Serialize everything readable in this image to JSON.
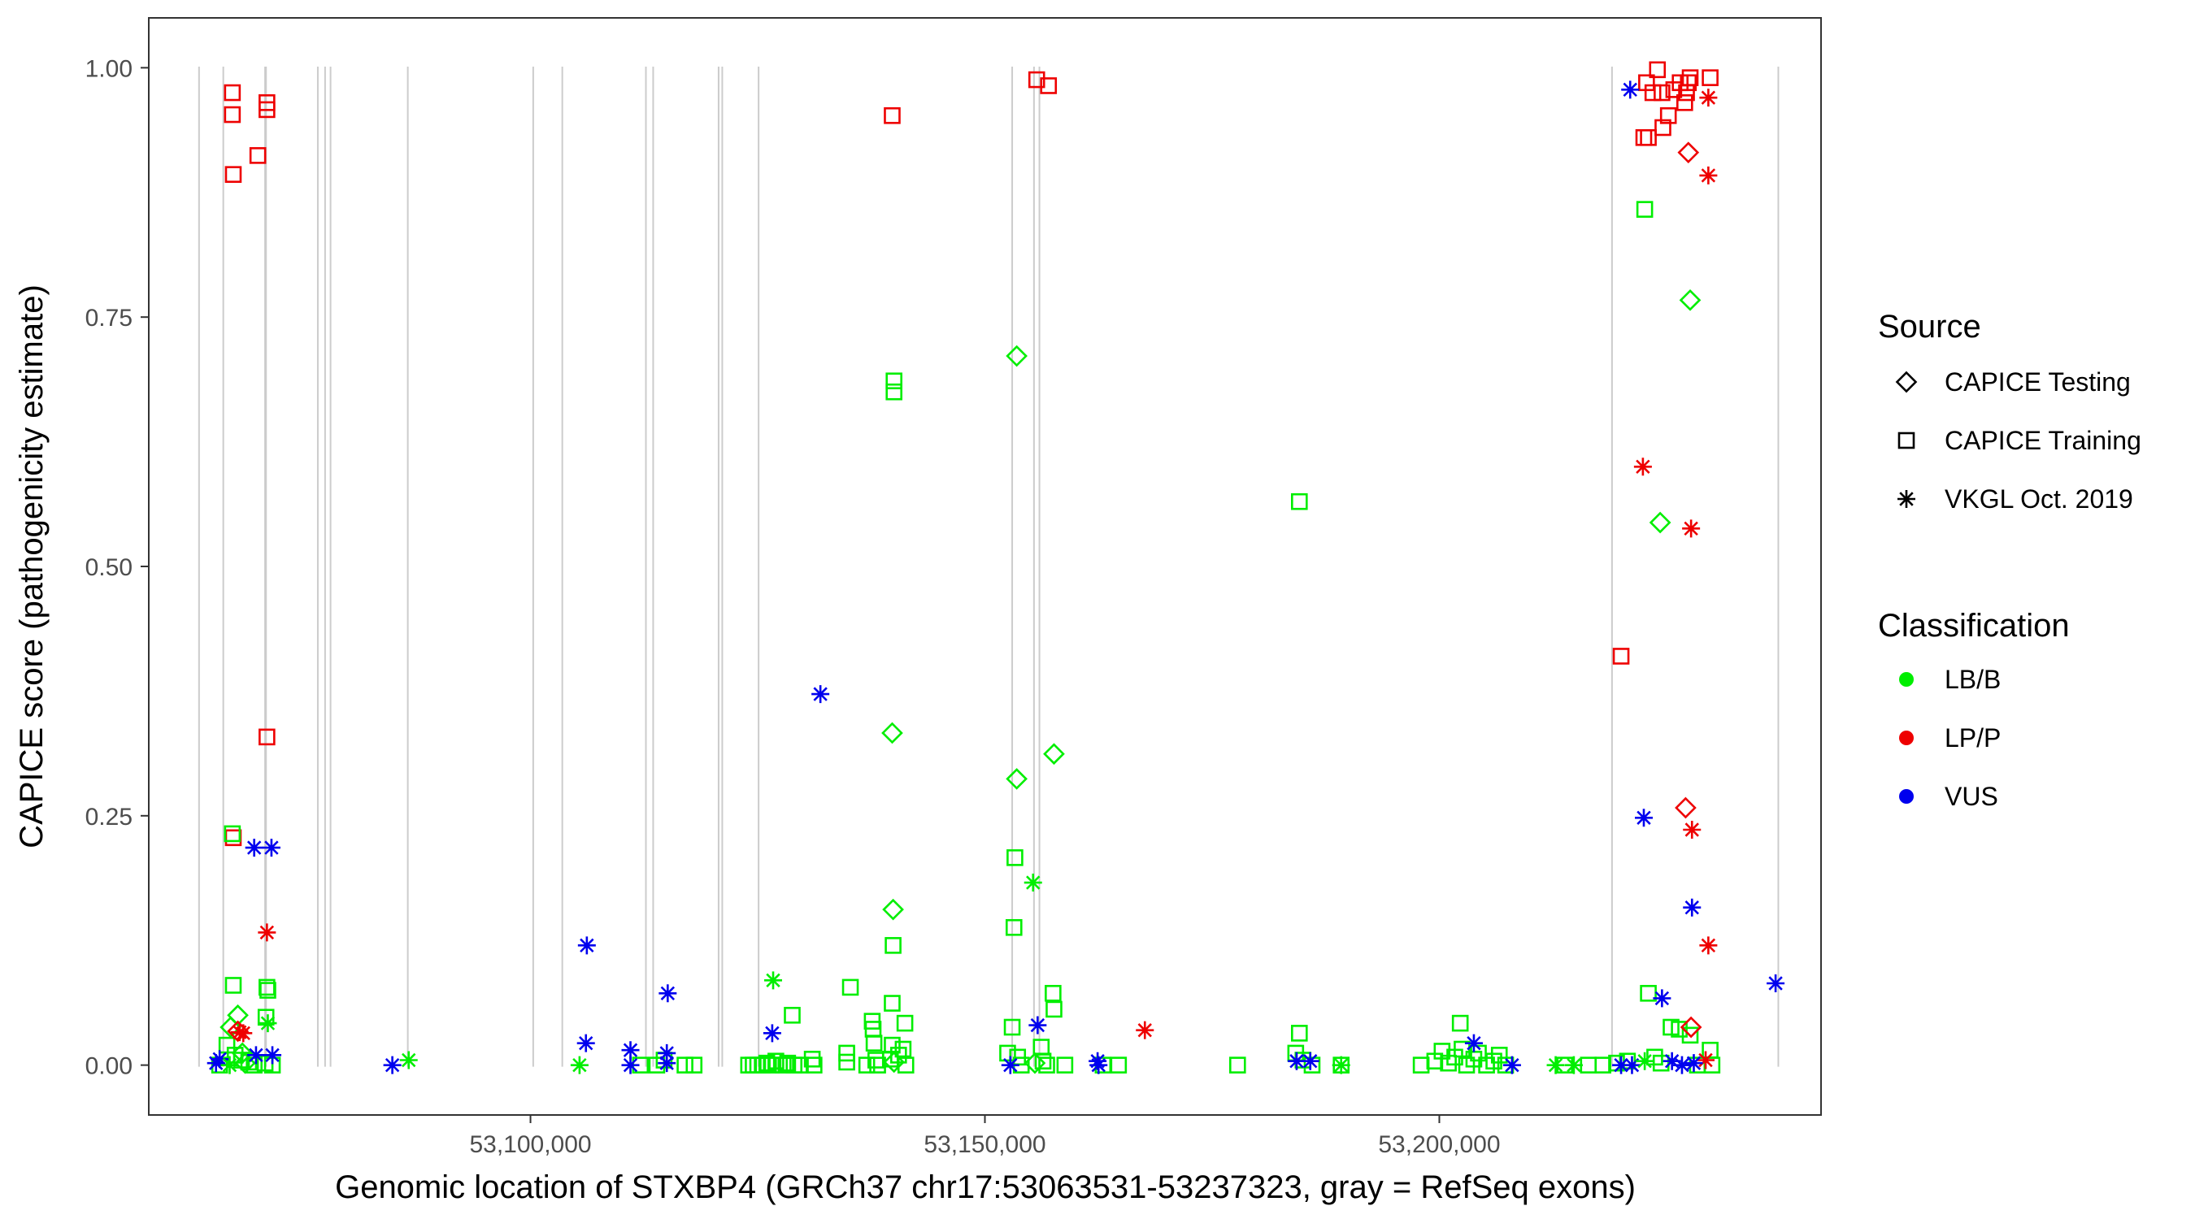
{
  "chart_data": {
    "type": "scatter",
    "xlabel": "Genomic location of STXBP4 (GRCh37 chr17:53063531-53237323, gray = RefSeq exons)",
    "ylabel": "CAPICE score (pathogenicity estimate)",
    "xlim": [
      53058000,
      53242000
    ],
    "ylim": [
      -0.05,
      1.05
    ],
    "x_ticks": [
      53100000,
      53150000,
      53200000
    ],
    "x_tick_labels": [
      "53,100,000",
      "53,150,000",
      "53,200,000"
    ],
    "y_ticks": [
      0.0,
      0.25,
      0.5,
      0.75,
      1.0
    ],
    "y_tick_labels": [
      "0.00",
      "0.25",
      "0.50",
      "0.75",
      "1.00"
    ],
    "grid": false,
    "exons": [
      53063531,
      53066200,
      53070800,
      53070900,
      53076600,
      53077400,
      53078000,
      53086500,
      53100300,
      53103500,
      53112700,
      53113500,
      53120700,
      53121100,
      53125100,
      53153000,
      53155400,
      53156000,
      53219000,
      53237300
    ],
    "legend": {
      "placement": "right",
      "source_title": "Source",
      "source_items": [
        {
          "label": "CAPICE Testing",
          "shape": "diamond"
        },
        {
          "label": "CAPICE Training",
          "shape": "square"
        },
        {
          "label": "VKGL Oct. 2019",
          "shape": "asterisk"
        }
      ],
      "class_title": "Classification",
      "class_items": [
        {
          "label": "LB/B",
          "color": "#00ee00"
        },
        {
          "label": "LP/P",
          "color": "#ee0000"
        },
        {
          "label": "VUS",
          "color": "#0000ee"
        }
      ]
    },
    "series": [
      {
        "name": "CAPICE Training",
        "shape": "square",
        "points": [
          [
            53067200,
            0.975,
            "LP/P"
          ],
          [
            53067200,
            0.953,
            "LP/P"
          ],
          [
            53067300,
            0.893,
            "LP/P"
          ],
          [
            53070000,
            0.912,
            "LP/P"
          ],
          [
            53071000,
            0.965,
            "LP/P"
          ],
          [
            53071000,
            0.958,
            "LP/P"
          ],
          [
            53071000,
            0.329,
            "LP/P"
          ],
          [
            53067300,
            0.228,
            "LP/P"
          ],
          [
            53139800,
            0.952,
            "LP/P"
          ],
          [
            53155700,
            0.988,
            "LP/P"
          ],
          [
            53157000,
            0.982,
            "LP/P"
          ],
          [
            53220000,
            0.41,
            "LP/P"
          ],
          [
            53222500,
            0.93,
            "LP/P"
          ],
          [
            53223000,
            0.93,
            "LP/P"
          ],
          [
            53222800,
            0.985,
            "LP/P"
          ],
          [
            53223500,
            0.975,
            "LP/P"
          ],
          [
            53224000,
            0.998,
            "LP/P"
          ],
          [
            53224500,
            0.975,
            "LP/P"
          ],
          [
            53224600,
            0.94,
            "LP/P"
          ],
          [
            53225200,
            0.952,
            "LP/P"
          ],
          [
            53225800,
            0.978,
            "LP/P"
          ],
          [
            53226500,
            0.985,
            "LP/P"
          ],
          [
            53227000,
            0.965,
            "LP/P"
          ],
          [
            53227200,
            0.975,
            "LP/P"
          ],
          [
            53227400,
            0.985,
            "LP/P"
          ],
          [
            53227600,
            0.99,
            "LP/P"
          ],
          [
            53229800,
            0.99,
            "LP/P"
          ],
          [
            53067200,
            0.232,
            "LB/B"
          ],
          [
            53067300,
            0.08,
            "LB/B"
          ],
          [
            53071000,
            0.078,
            "LB/B"
          ],
          [
            53071100,
            0.075,
            "LB/B"
          ],
          [
            53070900,
            0.048,
            "LB/B"
          ],
          [
            53066600,
            0.02,
            "LB/B"
          ],
          [
            53067500,
            0.01,
            "LB/B"
          ],
          [
            53068200,
            0.005,
            "LB/B"
          ],
          [
            53069000,
            0.003,
            "LB/B"
          ],
          [
            53065800,
            0.0,
            "LB/B"
          ],
          [
            53069600,
            0.0,
            "LB/B"
          ],
          [
            53070800,
            0.002,
            "LB/B"
          ],
          [
            53071600,
            0.0,
            "LB/B"
          ],
          [
            53112100,
            0.0,
            "LB/B"
          ],
          [
            53113900,
            0.0,
            "LB/B"
          ],
          [
            53114700,
            0.005,
            "LB/B"
          ],
          [
            53117000,
            0.0,
            "LB/B"
          ],
          [
            53118000,
            0.0,
            "LB/B"
          ],
          [
            53124000,
            0.0,
            "LB/B"
          ],
          [
            53124500,
            0.0,
            "LB/B"
          ],
          [
            53125000,
            0.0,
            "LB/B"
          ],
          [
            53125500,
            0.0,
            "LB/B"
          ],
          [
            53126000,
            0.002,
            "LB/B"
          ],
          [
            53126500,
            0.0,
            "LB/B"
          ],
          [
            53127000,
            0.004,
            "LB/B"
          ],
          [
            53127800,
            0.0,
            "LB/B"
          ],
          [
            53128300,
            0.002,
            "LB/B"
          ],
          [
            53128800,
            0.05,
            "LB/B"
          ],
          [
            53129000,
            0.0,
            "LB/B"
          ],
          [
            53129700,
            0.0,
            "LB/B"
          ],
          [
            53131000,
            0.006,
            "LB/B"
          ],
          [
            53131200,
            0.0,
            "LB/B"
          ],
          [
            53134800,
            0.012,
            "LB/B"
          ],
          [
            53134800,
            0.003,
            "LB/B"
          ],
          [
            53135200,
            0.078,
            "LB/B"
          ],
          [
            53137000,
            0.0,
            "LB/B"
          ],
          [
            53137600,
            0.044,
            "LB/B"
          ],
          [
            53137700,
            0.036,
            "LB/B"
          ],
          [
            53137800,
            0.022,
            "LB/B"
          ],
          [
            53138000,
            0.005,
            "LB/B"
          ],
          [
            53138200,
            0.0,
            "LB/B"
          ],
          [
            53139600,
            0.006,
            "LB/B"
          ],
          [
            53139800,
            0.062,
            "LB/B"
          ],
          [
            53139800,
            0.02,
            "LB/B"
          ],
          [
            53139900,
            0.12,
            "LB/B"
          ],
          [
            53140000,
            0.686,
            "LB/B"
          ],
          [
            53140000,
            0.675,
            "LB/B"
          ],
          [
            53140500,
            0.01,
            "LB/B"
          ],
          [
            53141000,
            0.016,
            "LB/B"
          ],
          [
            53141200,
            0.042,
            "LB/B"
          ],
          [
            53141300,
            0.0,
            "LB/B"
          ],
          [
            53152500,
            0.012,
            "LB/B"
          ],
          [
            53153000,
            0.038,
            "LB/B"
          ],
          [
            53153200,
            0.138,
            "LB/B"
          ],
          [
            53153300,
            0.208,
            "LB/B"
          ],
          [
            53153600,
            0.008,
            "LB/B"
          ],
          [
            53154000,
            0.0,
            "LB/B"
          ],
          [
            53156200,
            0.018,
            "LB/B"
          ],
          [
            53156400,
            0.004,
            "LB/B"
          ],
          [
            53156800,
            0.0,
            "LB/B"
          ],
          [
            53157500,
            0.072,
            "LB/B"
          ],
          [
            53157600,
            0.056,
            "LB/B"
          ],
          [
            53158800,
            0.0,
            "LB/B"
          ],
          [
            53163000,
            0.0,
            "LB/B"
          ],
          [
            53164700,
            0.0,
            "LB/B"
          ],
          [
            53177800,
            0.0,
            "LB/B"
          ],
          [
            53184600,
            0.565,
            "LB/B"
          ],
          [
            53184600,
            0.032,
            "LB/B"
          ],
          [
            53184200,
            0.012,
            "LB/B"
          ],
          [
            53185000,
            0.005,
            "LB/B"
          ],
          [
            53186000,
            0.0,
            "LB/B"
          ],
          [
            53189200,
            0.0,
            "LB/B"
          ],
          [
            53198000,
            0.0,
            "LB/B"
          ],
          [
            53199500,
            0.004,
            "LB/B"
          ],
          [
            53200300,
            0.014,
            "LB/B"
          ],
          [
            53201000,
            0.002,
            "LB/B"
          ],
          [
            53201700,
            0.008,
            "LB/B"
          ],
          [
            53202300,
            0.042,
            "LB/B"
          ],
          [
            53202500,
            0.016,
            "LB/B"
          ],
          [
            53203000,
            0.0,
            "LB/B"
          ],
          [
            53203800,
            0.006,
            "LB/B"
          ],
          [
            53204300,
            0.012,
            "LB/B"
          ],
          [
            53205200,
            0.0,
            "LB/B"
          ],
          [
            53206000,
            0.004,
            "LB/B"
          ],
          [
            53206600,
            0.01,
            "LB/B"
          ],
          [
            53207300,
            0.0,
            "LB/B"
          ],
          [
            53213800,
            0.0,
            "LB/B"
          ],
          [
            53216400,
            0.0,
            "LB/B"
          ],
          [
            53218000,
            0.0,
            "LB/B"
          ],
          [
            53219500,
            0.002,
            "LB/B"
          ],
          [
            53220700,
            0.004,
            "LB/B"
          ],
          [
            53222600,
            0.858,
            "LB/B"
          ],
          [
            53223000,
            0.072,
            "LB/B"
          ],
          [
            53223700,
            0.008,
            "LB/B"
          ],
          [
            53224400,
            0.002,
            "LB/B"
          ],
          [
            53225500,
            0.038,
            "LB/B"
          ],
          [
            53226400,
            0.036,
            "LB/B"
          ],
          [
            53227600,
            0.03,
            "LB/B"
          ],
          [
            53228400,
            0.0,
            "LB/B"
          ],
          [
            53229800,
            0.015,
            "LB/B"
          ],
          [
            53230000,
            0.0,
            "LB/B"
          ]
        ]
      },
      {
        "name": "CAPICE Testing",
        "shape": "diamond",
        "points": [
          [
            53067000,
            0.038,
            "LB/B"
          ],
          [
            53067800,
            0.05,
            "LB/B"
          ],
          [
            53068300,
            0.012,
            "LB/B"
          ],
          [
            53068600,
            0.002,
            "LB/B"
          ],
          [
            53139800,
            0.333,
            "LB/B"
          ],
          [
            53139900,
            0.156,
            "LB/B"
          ],
          [
            53140000,
            0.003,
            "LB/B"
          ],
          [
            53153500,
            0.711,
            "LB/B"
          ],
          [
            53153500,
            0.287,
            "LB/B"
          ],
          [
            53157600,
            0.312,
            "LB/B"
          ],
          [
            53155500,
            0.002,
            "LB/B"
          ],
          [
            53227600,
            0.767,
            "LB/B"
          ],
          [
            53224300,
            0.544,
            "LB/B"
          ],
          [
            53227400,
            0.915,
            "LP/P"
          ],
          [
            53227100,
            0.258,
            "LP/P"
          ],
          [
            53227700,
            0.038,
            "LP/P"
          ],
          [
            53067800,
            0.034,
            "LP/P"
          ]
        ]
      },
      {
        "name": "VKGL Oct. 2019",
        "shape": "asterisk",
        "points": [
          [
            53069600,
            0.218,
            "VUS"
          ],
          [
            53071500,
            0.218,
            "VUS"
          ],
          [
            53069800,
            0.01,
            "VUS"
          ],
          [
            53071600,
            0.01,
            "VUS"
          ],
          [
            53065400,
            0.002,
            "VUS"
          ],
          [
            53065800,
            0.006,
            "VUS"
          ],
          [
            53071000,
            0.133,
            "LP/P"
          ],
          [
            53068000,
            0.033,
            "LP/P"
          ],
          [
            53068400,
            0.032,
            "LP/P"
          ],
          [
            53071100,
            0.042,
            "LB/B"
          ],
          [
            53066900,
            0.0,
            "LB/B"
          ],
          [
            53084800,
            0.0,
            "VUS"
          ],
          [
            53086600,
            0.005,
            "LB/B"
          ],
          [
            53106200,
            0.12,
            "VUS"
          ],
          [
            53106100,
            0.022,
            "VUS"
          ],
          [
            53105400,
            0.0,
            "LB/B"
          ],
          [
            53111000,
            0.015,
            "VUS"
          ],
          [
            53111000,
            0.0,
            "VUS"
          ],
          [
            53115100,
            0.072,
            "VUS"
          ],
          [
            53115000,
            0.012,
            "VUS"
          ],
          [
            53115000,
            0.002,
            "VUS"
          ],
          [
            53126700,
            0.085,
            "LB/B"
          ],
          [
            53126600,
            0.032,
            "VUS"
          ],
          [
            53131900,
            0.372,
            "VUS"
          ],
          [
            53152800,
            0.0,
            "VUS"
          ],
          [
            53155300,
            0.183,
            "LB/B"
          ],
          [
            53155800,
            0.04,
            "VUS"
          ],
          [
            53162400,
            0.004,
            "VUS"
          ],
          [
            53162500,
            0.0,
            "VUS"
          ],
          [
            53167600,
            0.035,
            "LP/P"
          ],
          [
            53184300,
            0.004,
            "VUS"
          ],
          [
            53185800,
            0.004,
            "VUS"
          ],
          [
            53189200,
            0.0,
            "LB/B"
          ],
          [
            53203800,
            0.022,
            "VUS"
          ],
          [
            53208000,
            0.0,
            "VUS"
          ],
          [
            53212800,
            0.0,
            "LB/B"
          ],
          [
            53214800,
            0.0,
            "LB/B"
          ],
          [
            53221000,
            0.978,
            "VUS"
          ],
          [
            53222400,
            0.6,
            "LP/P"
          ],
          [
            53227700,
            0.538,
            "LP/P"
          ],
          [
            53222500,
            0.248,
            "VUS"
          ],
          [
            53224500,
            0.067,
            "VUS"
          ],
          [
            53227800,
            0.236,
            "LP/P"
          ],
          [
            53227800,
            0.158,
            "VUS"
          ],
          [
            53229600,
            0.12,
            "LP/P"
          ],
          [
            53229600,
            0.892,
            "LP/P"
          ],
          [
            53229600,
            0.97,
            "LP/P"
          ],
          [
            53237000,
            0.082,
            "VUS"
          ],
          [
            53229300,
            0.005,
            "LP/P"
          ],
          [
            53221200,
            0.0,
            "VUS"
          ],
          [
            53222600,
            0.004,
            "LB/B"
          ],
          [
            53225600,
            0.004,
            "VUS"
          ],
          [
            53226700,
            0.0,
            "VUS"
          ],
          [
            53228000,
            0.002,
            "VUS"
          ],
          [
            53220000,
            0.0,
            "VUS"
          ]
        ]
      }
    ]
  }
}
